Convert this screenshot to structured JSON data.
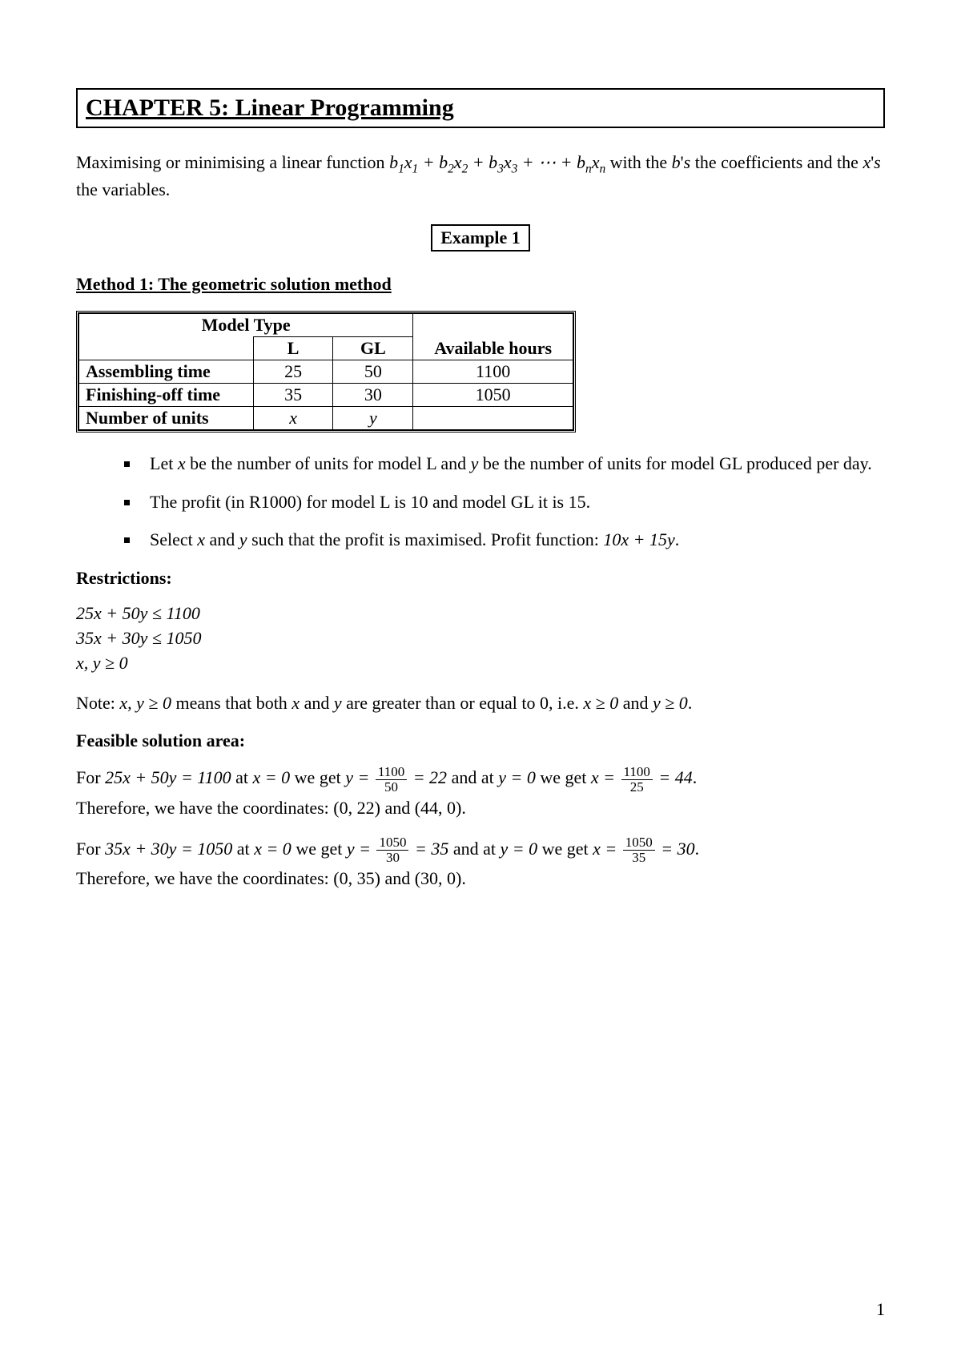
{
  "chapter_title": "CHAPTER 5: Linear Programming",
  "intro_prefix": "Maximising or minimising a linear function ",
  "intro_expr_terms": [
    "b",
    "x",
    " + ",
    "b",
    "x",
    " + ",
    "b",
    "x",
    " + ⋯ + ",
    "b",
    "x"
  ],
  "intro_suffix": " with the ",
  "intro_bs": "b's",
  "intro_mid": " the coefficients and the ",
  "intro_xs": "x's",
  "intro_end": " the variables.",
  "example_label": "Example 1",
  "method_title": "Method 1: The geometric solution method",
  "table": {
    "model_type_header": "Model Type",
    "col_L": "L",
    "col_GL": "GL",
    "col_AH": "Available hours",
    "rows": [
      {
        "label": "Assembling time",
        "L": "25",
        "GL": "50",
        "AH": "1100"
      },
      {
        "label": "Finishing-off time",
        "L": "35",
        "GL": "30",
        "AH": "1050"
      },
      {
        "label": "Number of units",
        "L": "x",
        "GL": "y",
        "AH": ""
      }
    ]
  },
  "bullets": {
    "b1_pre": "Let ",
    "b1_x": "x",
    "b1_mid1": " be the number of units for model L and ",
    "b1_y": "y",
    "b1_post": " be the number of units for model GL produced per day.",
    "b2": "The profit (in R1000) for model L is 10 and model GL it is 15.",
    "b3_pre": "Select ",
    "b3_x": "x",
    "b3_and": " and ",
    "b3_y": "y",
    "b3_mid": " such that the profit is maximised. Profit function: ",
    "b3_expr": "10x + 15y",
    "b3_post": "."
  },
  "restrictions_label": "Restrictions:",
  "restrictions": {
    "r1": "25x + 50y ≤ 1100",
    "r2": "35x + 30y ≤ 1050",
    "r3": "x, y ≥ 0"
  },
  "note_prefix": "Note:   ",
  "note_expr1": "x, y ≥ 0",
  "note_mid": " means that both ",
  "note_x": "x",
  "note_and": " and ",
  "note_y": "y",
  "note_mid2": " are greater than or equal to 0, i.e. ",
  "note_expr2": "x ≥ 0",
  "note_and2": " and ",
  "note_expr3": "y ≥ 0",
  "note_end": ".",
  "feasible_label": "Feasible solution area:",
  "fs1": {
    "pre": "For ",
    "eq": "25x + 50y = 1100",
    "at1": " at ",
    "x0": "x = 0",
    "weget1": " we get ",
    "yexpr": "y = ",
    "frac1_num": "1100",
    "frac1_den": "50",
    "eq22": " = 22",
    "andat": " and at ",
    "y0": "y = 0",
    "weget2": " we get ",
    "xexpr": "x = ",
    "frac2_num": "1100",
    "frac2_den": "25",
    "eq44": " = 44",
    "end": ".",
    "therefore": "Therefore, we have the coordinates: (0, 22) and (44, 0)."
  },
  "fs2": {
    "pre": "For ",
    "eq": "35x + 30y = 1050",
    "at1": " at ",
    "x0": "x = 0",
    "weget1": " we get ",
    "yexpr": "y = ",
    "frac1_num": "1050",
    "frac1_den": "30",
    "eq35": " = 35",
    "andat": " and at ",
    "y0": "y = 0",
    "weget2": " we get ",
    "xexpr": "x = ",
    "frac2_num": "1050",
    "frac2_den": "35",
    "eq30": " = 30",
    "end": ".",
    "therefore": "Therefore, we have the coordinates: (0, 35) and (30, 0)."
  },
  "page_number": "1"
}
